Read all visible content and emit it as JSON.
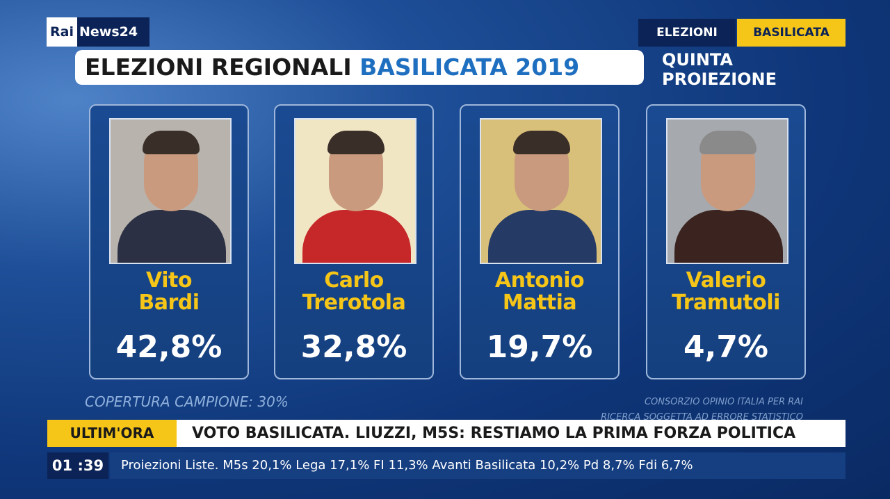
{
  "logo": {
    "rai": "Rai",
    "channel": "News24"
  },
  "header": {
    "title": "ELEZIONI REGIONALI",
    "title_highlight": "BASILICATA 2019",
    "tag": "ELEZIONI",
    "tag_highlight": "BASILICATA",
    "subtitle_lines": [
      "QUINTA",
      "PROIEZIONE"
    ]
  },
  "candidates": [
    {
      "name_lines": [
        "Vito",
        "Bardi"
      ],
      "percent": "42,8%"
    },
    {
      "name_lines": [
        "Carlo",
        "Trerotola"
      ],
      "percent": "32,8%"
    },
    {
      "name_lines": [
        "Antonio",
        "Mattia"
      ],
      "percent": "19,7%"
    },
    {
      "name_lines": [
        "Valerio",
        "Tramutoli"
      ],
      "percent": "4,7%"
    }
  ],
  "footer": {
    "coverage": "COPERTURA CAMPIONE: 30%",
    "source_lines": [
      "CONSORZIO OPINIO ITALIA PER RAI",
      "RICERCA SOGGETTA AD ERRORE STATISTICO"
    ]
  },
  "ticker": {
    "label": "ULTIM'ORA",
    "headline": "VOTO BASILICATA. LIUZZI, M5S: RESTIAMO LA PRIMA FORZA POLITICA",
    "clock": "01 :39",
    "crawl": "Proiezioni Liste. M5s 20,1% Lega 17,1% FI 11,3% Avanti Basilicata 10,2% Pd 8,7% Fdi 6,7%"
  }
}
